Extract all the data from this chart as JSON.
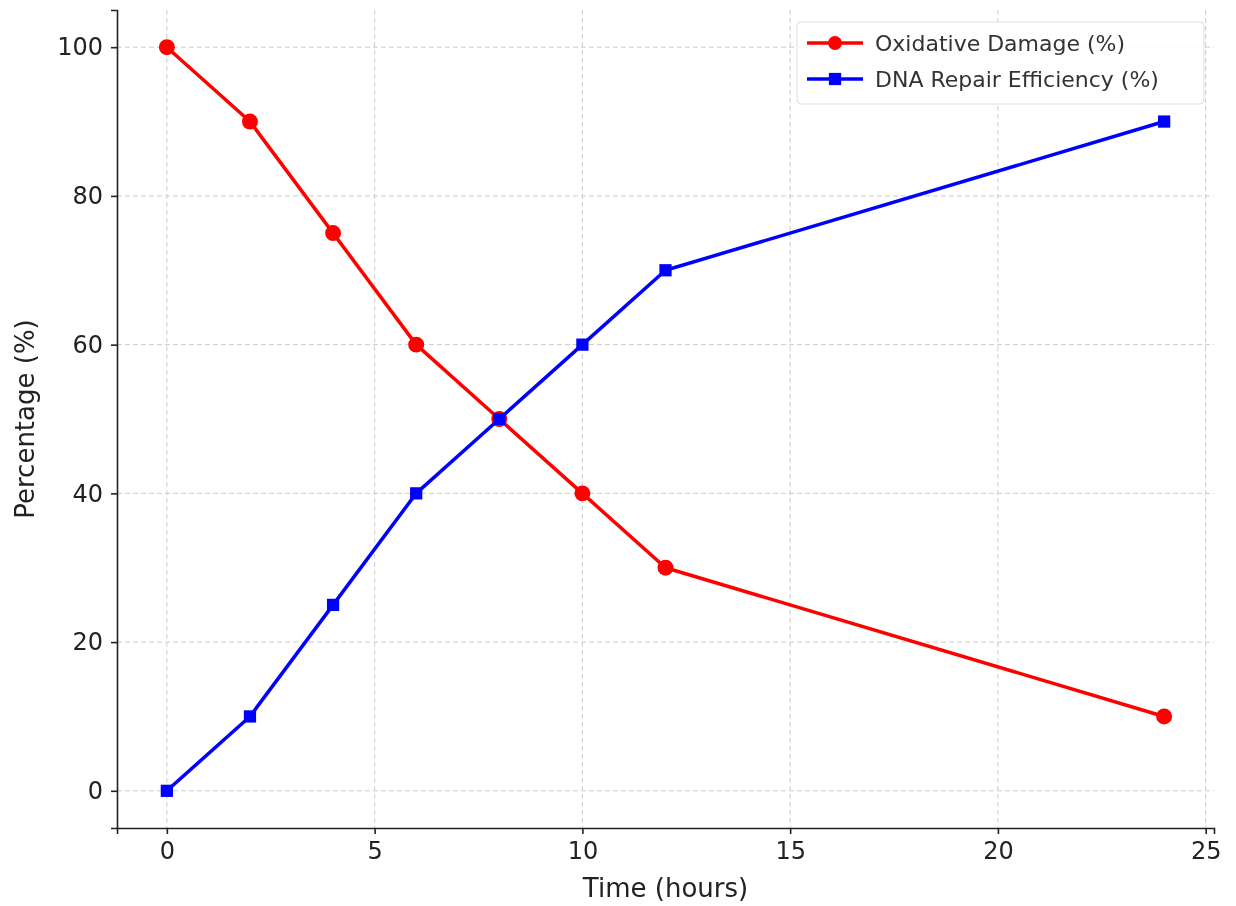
{
  "chart_data": {
    "type": "line",
    "xlabel": "Time (hours)",
    "ylabel": "Percentage (%)",
    "x": [
      0,
      2,
      4,
      6,
      8,
      10,
      12,
      24
    ],
    "series": [
      {
        "name": "Oxidative Damage (%)",
        "color": "#ff0000",
        "marker": "circle",
        "values": [
          100,
          90,
          75,
          60,
          50,
          40,
          30,
          10
        ]
      },
      {
        "name": "DNA Repair Efficiency (%)",
        "color": "#0000ff",
        "marker": "square",
        "values": [
          0,
          10,
          25,
          40,
          50,
          60,
          70,
          90
        ]
      }
    ],
    "xlim": [
      -1.2,
      25.2
    ],
    "ylim": [
      -5,
      105
    ],
    "xticks": [
      0,
      5,
      10,
      15,
      20,
      25
    ],
    "yticks": [
      0,
      20,
      40,
      60,
      80,
      100
    ],
    "grid": true,
    "legend": "top right",
    "line_style": "solid"
  }
}
